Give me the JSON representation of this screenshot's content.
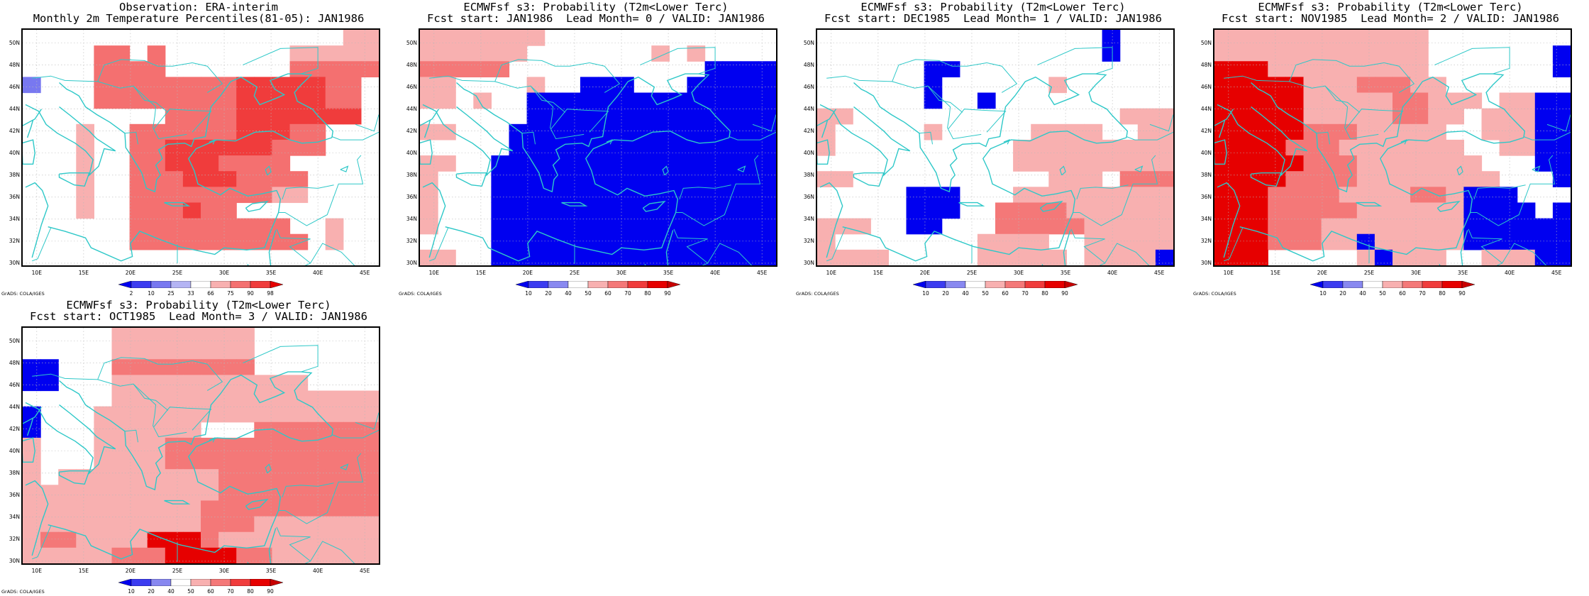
{
  "lat_labels": [
    "50N",
    "48N",
    "46N",
    "44N",
    "42N",
    "40N",
    "38N",
    "36N",
    "34N",
    "32N",
    "30N"
  ],
  "lon_labels": [
    "10E",
    "15E",
    "20E",
    "25E",
    "30E",
    "35E",
    "40E",
    "45E"
  ],
  "credit": "GrADS: COLA/IGES",
  "coast_color": "#2ec8c8",
  "panels": [
    {
      "title1": "Observation: ERA-interim",
      "title2": "Monthly 2m Temperature Percentiles(81-05): JAN1986",
      "cbar_kind": "percentile",
      "cbar_labels": [
        "2",
        "10",
        "25",
        "33",
        "66",
        "75",
        "90",
        "98"
      ]
    },
    {
      "title1": "ECMWFsf s3: Probability (T2m<Lower Terc)",
      "title2": "Fcst start: JAN1986  Lead Month= 0 / VALID: JAN1986",
      "cbar_kind": "prob",
      "cbar_labels": [
        "10",
        "20",
        "40",
        "50",
        "60",
        "70",
        "80",
        "90"
      ]
    },
    {
      "title1": "ECMWFsf s3: Probability (T2m<Lower Terc)",
      "title2": "Fcst start: DEC1985  Lead Month= 1 / VALID: JAN1986",
      "cbar_kind": "prob",
      "cbar_labels": [
        "10",
        "20",
        "40",
        "50",
        "60",
        "70",
        "80",
        "90"
      ]
    },
    {
      "title1": "ECMWFsf s3: Probability (T2m<Lower Terc)",
      "title2": "Fcst start: NOV1985  Lead Month= 2 / VALID: JAN1986",
      "cbar_kind": "prob",
      "cbar_labels": [
        "10",
        "20",
        "40",
        "50",
        "60",
        "70",
        "80",
        "90"
      ]
    },
    {
      "title1": "ECMWFsf s3: Probability (T2m<Lower Terc)",
      "title2": "Fcst start: OCT1985  Lead Month= 3 / VALID: JAN1986",
      "cbar_kind": "prob",
      "cbar_labels": [
        "10",
        "20",
        "40",
        "50",
        "60",
        "70",
        "80",
        "90"
      ]
    }
  ],
  "palettes": {
    "percentile": [
      "#0000f0",
      "#3c3cf0",
      "#7878f0",
      "#b4b4f4",
      "#ffffff",
      "#f8b0b0",
      "#f47070",
      "#f03c3c",
      "#e60000"
    ],
    "prob": [
      "#0000f0",
      "#3c3cf0",
      "#8888f0",
      "#ffffff",
      "#f8b0b0",
      "#f47878",
      "#f03c3c",
      "#e60000",
      "#c80000"
    ]
  },
  "grids": [
    [
      "..................aa",
      "....bb.b.......aaaaa",
      "....bbbb.......bbbbb",
      "L...bbbbbbbbcccccbb.",
      "....bbbbbbbbcccccbb.",
      "........bbbbccccccc.",
      "...a..bbbbbbcccbb...",
      "...a..bbccccccbbb...",
      "...a..bbcccbbbb.....",
      "...a..bbbcccbbbb....",
      "...a..bbbbbbbbaa....",
      "...a..bbbcbb........",
      "......bbbbbbbbb..a..",
      "......bbbbbbbbbb.a..",
      "...................."
    ],
    [
      "aaaaaaa.............",
      "aaaaaa.......a.a....",
      "bbbbb...........DDDD",
      "aa....a..DDD...DDDDD",
      "aa.a..DDDDDDDDDDDDDD",
      "......DDDDDDDDDDDDDD",
      "aa...DDDDDDDDDDDDDDD",
      ".....DDDDDDDDDDDDDDD",
      "aa..DDDDDDDDDDDDDDDD",
      "a...DDDDDDDDDDDDDDDD",
      "a...DDDDDDDDDDDDDDDD",
      "a...DDDDDDDDDDDDDDDD",
      "a...DDDDDDDDDDDDDDDD",
      "....DDDDDDDDDDDDDDDD",
      "aa..DDDDDDDDDDDDDDDD"
    ],
    [
      "................D...",
      "................D...",
      "......DD............",
      "......D......a......",
      "......D..D..........",
      "aa...............aaa",
      "a.....a.....aaaa..aa",
      "a..........aaaaaaaaa",
      "...........aaaaaaaaa",
      "aa...........aaa.bbb",
      ".....DDD...aaaaaaaaa",
      ".....DDD..bbbbaaaaaa",
      "aaa..DD...bbbbbaaaaa",
      "a........aaaa..aaaaa",
      "aaaa.....aaaaa.aaaaD"
    ],
    [
      "aaaaaaaaaaaa........",
      "aaaaaaaaaaaa.......D",
      "cccaaaaaaaaa.......D",
      "cccccaaabbbaa.......",
      "cccccaaaaabbaaa.aaDD",
      "cccccaaaaabbaa.aaaDD",
      "cccccbbbaaaaa..aaaDD",
      "ccccbbbaaaaaaa..aaDD",
      "cccccbbbaaaaaaa...DD",
      "ccccbbbbaaaaaaaa...D",
      "cccbbbbaaaabbaDDD...",
      "cccbbbbbaaaaaaDDDD.D",
      "cccbbbaaaaaaaaDDDDDD",
      "cccbbbaaDaaaaaDDDDDD",
      "ccc.....aDaaa..aaaDD"
    ],
    [
      ".....aaaaaaaa.......",
      ".....aaaaaaaa.......",
      "DD...bbbbbbbb.......",
      "DD...aaaaaaaaaaa....",
      ".....aaaaaaaaaaaaaaa",
      "D...aaaaaaaaaaaaaaaa",
      "D...aaaaaa...bbbbbbb",
      "a...aaaabbbbbbbbbbbb",
      "a...aaaabbbbbbbbbbbb",
      "a.aaaaaaaaabbbbbbbbb",
      "aaaaaaaaaaabbbbbbbbb",
      "aaaaaaaaaabbbbbbbbbb",
      "aaaaaaaaaabbbaaaaaaa",
      "abbaaaacccbaaaaaaaaa",
      "aaaaabbbccccbbaaaaaa"
    ]
  ]
}
